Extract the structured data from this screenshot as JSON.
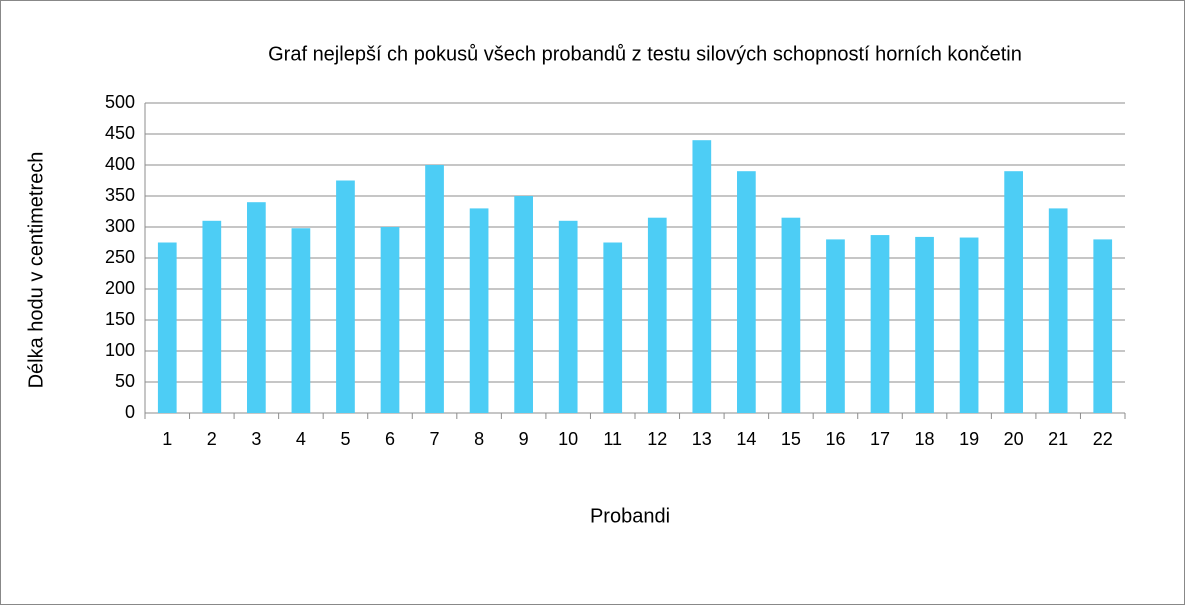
{
  "chart_data": {
    "type": "bar",
    "title": "Graf nejlepší ch pokusů  všech probandů  z testu silových schopností horních končetin",
    "x_label": "Probandi",
    "y_label": "Délka hodu v centimetrech",
    "categories": [
      "1",
      "2",
      "3",
      "4",
      "5",
      "6",
      "7",
      "8",
      "9",
      "10",
      "11",
      "12",
      "13",
      "14",
      "15",
      "16",
      "17",
      "18",
      "19",
      "20",
      "21",
      "22"
    ],
    "values": [
      275,
      310,
      340,
      298,
      375,
      300,
      400,
      330,
      350,
      310,
      275,
      315,
      440,
      390,
      315,
      280,
      287,
      284,
      283,
      390,
      330,
      280
    ],
    "color": "#4dcdf5",
    "ylim": [
      0,
      500
    ],
    "yticks": [
      0,
      50,
      100,
      150,
      200,
      250,
      300,
      350,
      400,
      450,
      500
    ],
    "grid": true
  }
}
